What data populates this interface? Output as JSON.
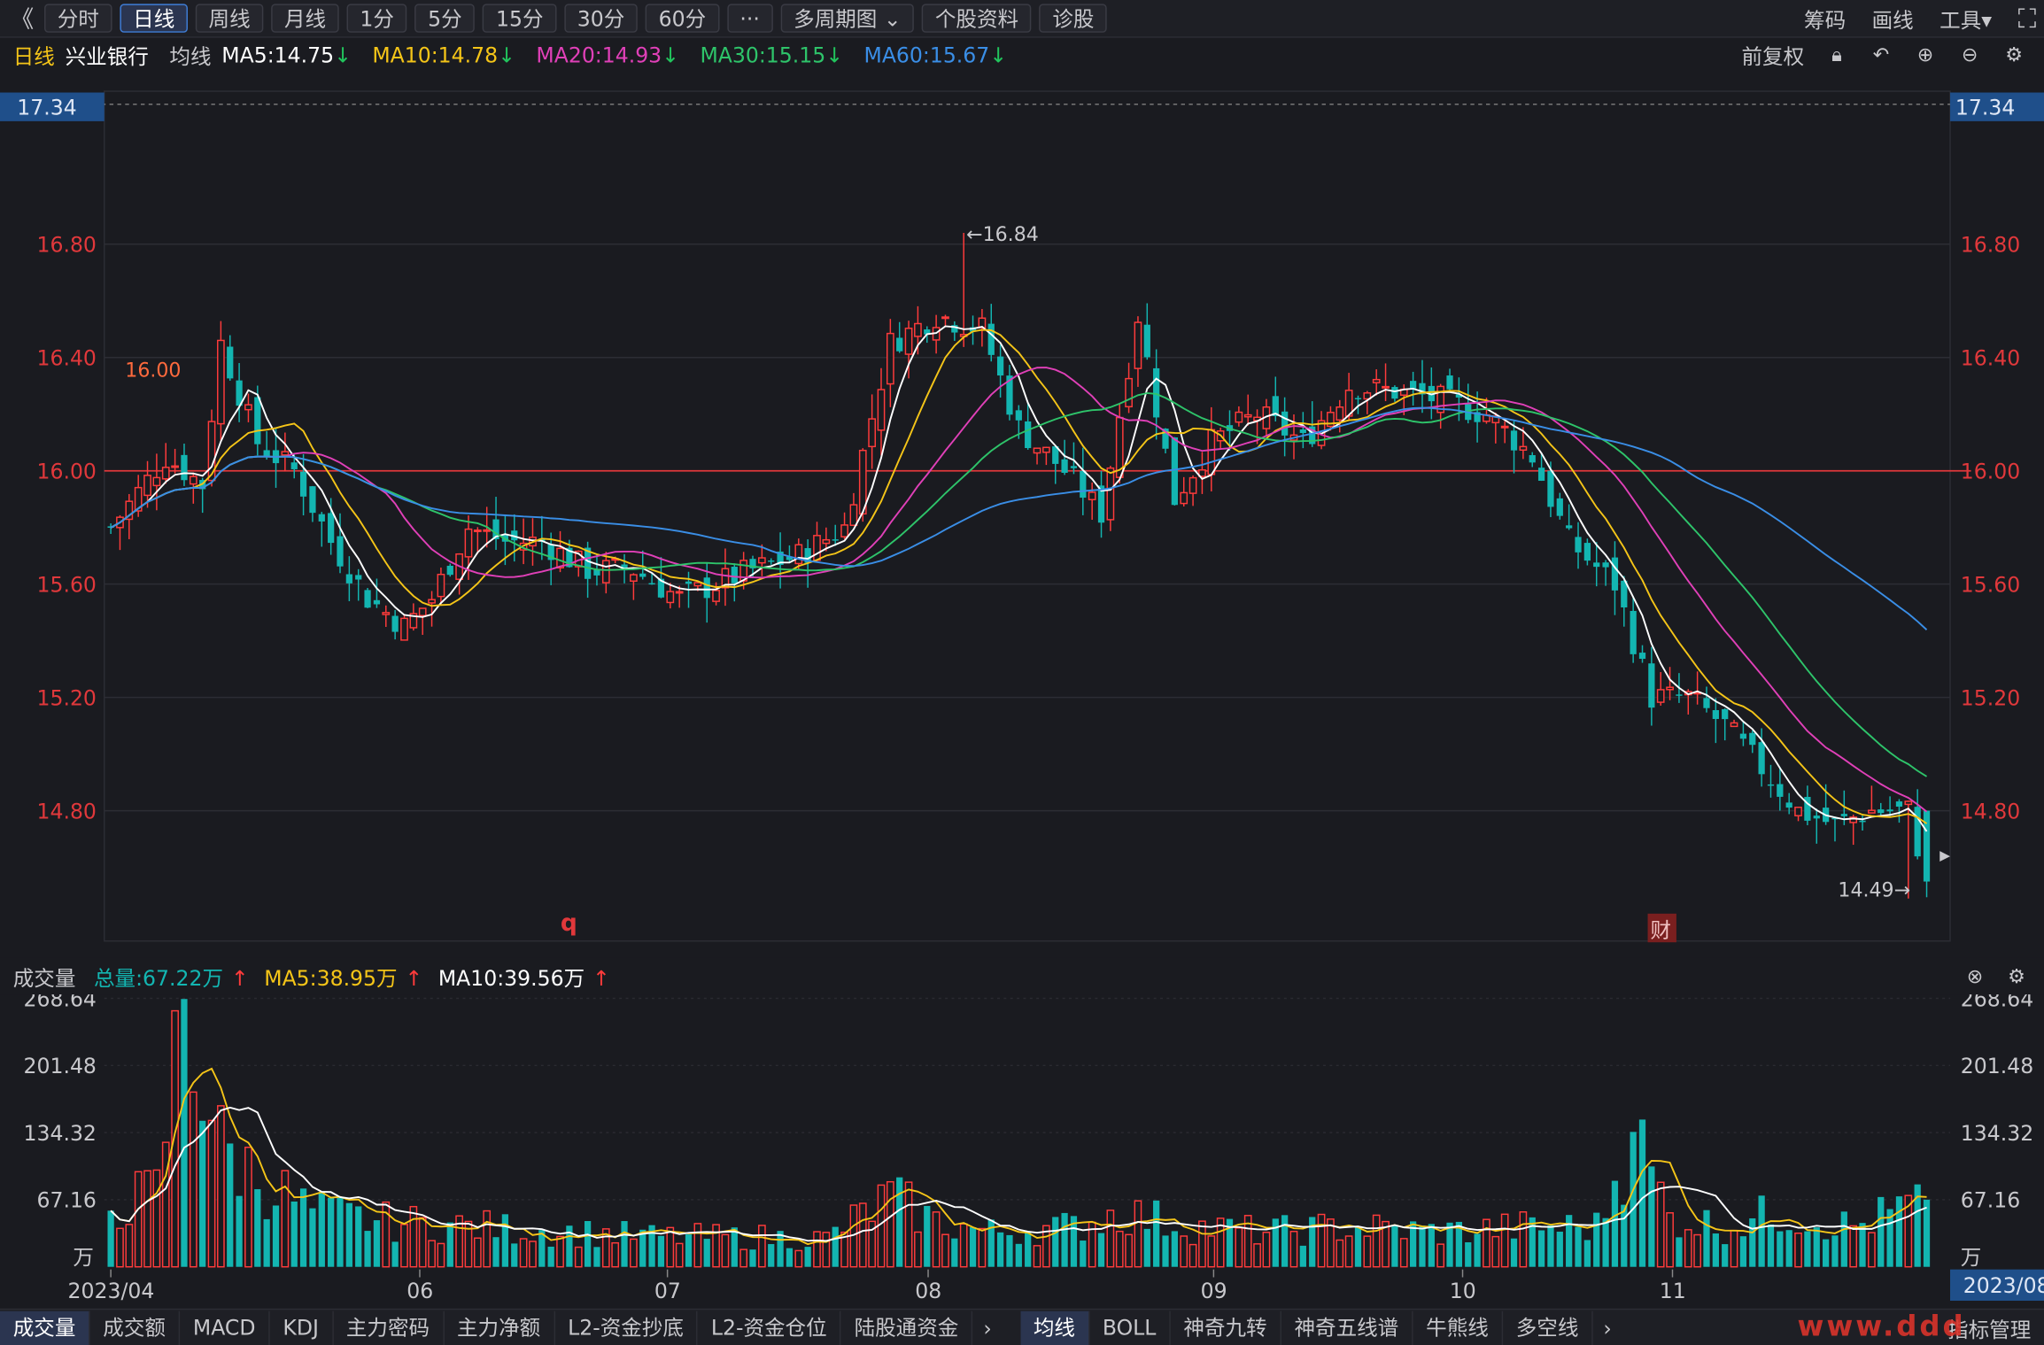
{
  "toolbar": {
    "back": "《",
    "buttons": [
      "分时",
      "日线",
      "周线",
      "月线",
      "1分",
      "5分",
      "15分",
      "30分",
      "60分",
      "···",
      "多周期图 ⌄",
      "个股资料",
      "诊股"
    ],
    "active_index": 1,
    "right": [
      "筹码",
      "画线",
      "工具▾"
    ],
    "fullscreen": "⛶"
  },
  "legend": {
    "period": "日线",
    "stock": "兴业银行",
    "ma_label": "均线",
    "items": [
      {
        "text": "MA5:14.75",
        "arrow": "↓",
        "color": "#ffffff"
      },
      {
        "text": "MA10:14.78",
        "arrow": "↓",
        "color": "#f5c518"
      },
      {
        "text": "MA20:14.93",
        "arrow": "↓",
        "color": "#e040b8"
      },
      {
        "text": "MA30:15.15",
        "arrow": "↓",
        "color": "#2ec46a"
      },
      {
        "text": "MA60:15.67",
        "arrow": "↓",
        "color": "#3a8ee6"
      }
    ],
    "fuquan": "前复权",
    "icons": [
      "lock-icon",
      "undo-icon",
      "plus-icon",
      "minus-icon",
      "gear-icon"
    ]
  },
  "price_axis": {
    "top_value": "17.34",
    "ticks": [
      "16.80",
      "16.40",
      "16.00",
      "15.60",
      "15.20",
      "14.80"
    ],
    "ref_line": 16.0
  },
  "annotations": {
    "high": "←16.84",
    "low": "14.49→",
    "q_marker": "q",
    "cai_marker": "财",
    "mark_16": "16.00"
  },
  "volume": {
    "title": "成交量",
    "total": "总量:67.22万",
    "total_arrow": "↑",
    "ma5": "MA5:38.95万",
    "ma5_arrow": "↑",
    "ma10": "MA10:39.56万",
    "ma10_arrow": "↑",
    "ticks": [
      "268.64",
      "201.48",
      "134.32",
      "67.16"
    ],
    "unit": "万"
  },
  "xaxis": {
    "labels": [
      "2023/04",
      "06",
      "07",
      "08",
      "09",
      "10",
      "11"
    ],
    "last": "2023/08"
  },
  "bottom_tabs_left": [
    "成交量",
    "成交额",
    "MACD",
    "KDJ",
    "主力密码",
    "主力净额",
    "L2-资金抄底",
    "L2-资金仓位",
    "陆股通资金"
  ],
  "bottom_tabs_right": [
    "均线",
    "BOLL",
    "神奇九转",
    "神奇五线谱",
    "牛熊线",
    "多空线"
  ],
  "colors": {
    "up": "#ff3b3b",
    "down": "#13b5b1",
    "ma5": "#ffffff",
    "ma10": "#f5c518",
    "ma20": "#e040b8",
    "ma30": "#2ec46a",
    "ma60": "#3a8ee6"
  },
  "watermark": "www.ddd",
  "indicator_manage": "指标管理",
  "chart_data": {
    "type": "candlestick",
    "x_range_labels": [
      "2023/04",
      "2023/11"
    ],
    "ylim": [
      14.49,
      16.84
    ],
    "volume_unit": "万",
    "volume_ylim": [
      0,
      268.64
    ],
    "anchors_close": [
      [
        0,
        15.8
      ],
      [
        6,
        16.05
      ],
      [
        10,
        15.95
      ],
      [
        12,
        16.45
      ],
      [
        16,
        16.1
      ],
      [
        20,
        16.0
      ],
      [
        24,
        15.75
      ],
      [
        28,
        15.55
      ],
      [
        32,
        15.45
      ],
      [
        35,
        15.55
      ],
      [
        39,
        15.8
      ],
      [
        43,
        15.75
      ],
      [
        47,
        15.75
      ],
      [
        52,
        15.65
      ],
      [
        57,
        15.65
      ],
      [
        62,
        15.55
      ],
      [
        66,
        15.6
      ],
      [
        70,
        15.65
      ],
      [
        75,
        15.7
      ],
      [
        80,
        15.8
      ],
      [
        85,
        16.45
      ],
      [
        90,
        16.55
      ],
      [
        95,
        16.5
      ],
      [
        99,
        16.15
      ],
      [
        104,
        16.0
      ],
      [
        108,
        15.85
      ],
      [
        112,
        16.55
      ],
      [
        116,
        15.9
      ],
      [
        120,
        16.1
      ],
      [
        125,
        16.2
      ],
      [
        130,
        16.1
      ],
      [
        135,
        16.3
      ],
      [
        140,
        16.28
      ],
      [
        145,
        16.25
      ],
      [
        150,
        16.2
      ],
      [
        155,
        16.05
      ],
      [
        159,
        15.75
      ],
      [
        164,
        15.6
      ],
      [
        168,
        15.2
      ],
      [
        172,
        15.2
      ],
      [
        176,
        15.1
      ],
      [
        180,
        14.95
      ],
      [
        184,
        14.8
      ],
      [
        188,
        14.75
      ],
      [
        192,
        14.8
      ],
      [
        196,
        14.8
      ],
      [
        198,
        14.55
      ]
    ],
    "volume_anchors": [
      [
        0,
        60
      ],
      [
        5,
        75
      ],
      [
        8,
        268
      ],
      [
        12,
        120
      ],
      [
        16,
        90
      ],
      [
        22,
        55
      ],
      [
        30,
        45
      ],
      [
        40,
        40
      ],
      [
        50,
        35
      ],
      [
        60,
        30
      ],
      [
        70,
        30
      ],
      [
        78,
        28
      ],
      [
        85,
        70
      ],
      [
        90,
        45
      ],
      [
        96,
        35
      ],
      [
        105,
        40
      ],
      [
        110,
        55
      ],
      [
        118,
        40
      ],
      [
        126,
        35
      ],
      [
        135,
        40
      ],
      [
        145,
        35
      ],
      [
        155,
        40
      ],
      [
        162,
        40
      ],
      [
        166,
        135
      ],
      [
        170,
        50
      ],
      [
        176,
        40
      ],
      [
        182,
        55
      ],
      [
        190,
        40
      ],
      [
        198,
        67
      ]
    ]
  }
}
